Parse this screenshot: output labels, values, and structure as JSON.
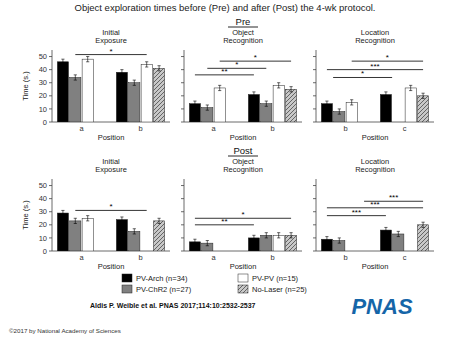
{
  "title": "Object exploration times before (Pre) and after (Post) the 4-wk protocol.",
  "row_labels": [
    "Pre",
    "Post"
  ],
  "citation": "Aldis P. Weible et al. PNAS 2017;114:10:2532-2537",
  "logo": {
    "text": "PNAS",
    "color": "#1565a8"
  },
  "copyright": "©2017 by National Academy of Sciences",
  "chart_data": [
    {
      "type": "bar",
      "title": "Initial\nExposure",
      "categories": [
        "a",
        "b"
      ],
      "series": [
        {
          "name": "PV-Arch (n=34)",
          "color": "#000000",
          "values": [
            46,
            38
          ],
          "errors": [
            2.0,
            2.0
          ]
        },
        {
          "name": "PV-ChR2 (n=27)",
          "color": "#808080",
          "values": [
            34,
            30
          ],
          "errors": [
            2.0,
            2.0
          ]
        },
        {
          "name": "PV-PV (n=15)",
          "color": "#ffffff",
          "values": [
            48,
            44
          ],
          "errors": [
            2.0,
            2.0
          ]
        },
        {
          "name": "No-Laser (n=25)",
          "color": "#c8c8c8",
          "values": [
            null,
            41
          ],
          "errors": [
            null,
            2.0
          ]
        }
      ],
      "xlabel": "Position",
      "ylabel": "Time (s.)",
      "ylim": [
        0,
        55
      ],
      "yticks": [
        0,
        10,
        20,
        30,
        40,
        50
      ],
      "legend": "bottom",
      "annotations": [
        {
          "text": "*",
          "y": 51.5,
          "from": [
            0,
            1
          ],
          "to": [
            1,
            2
          ]
        }
      ]
    },
    {
      "type": "bar",
      "title": "Object\nRecognition",
      "categories": [
        "a",
        "b"
      ],
      "series": [
        {
          "name": "PV-Arch (n=34)",
          "color": "#000000",
          "values": [
            14,
            21
          ],
          "errors": [
            2.0,
            2.0
          ]
        },
        {
          "name": "PV-ChR2 (n=27)",
          "color": "#808080",
          "values": [
            11,
            14
          ],
          "errors": [
            2.0,
            2.0
          ]
        },
        {
          "name": "PV-PV (n=15)",
          "color": "#ffffff",
          "values": [
            26,
            28
          ],
          "errors": [
            2.0,
            2.0
          ]
        },
        {
          "name": "No-Laser (n=25)",
          "color": "#c8c8c8",
          "values": [
            null,
            25
          ],
          "errors": [
            null,
            2.0
          ]
        }
      ],
      "xlabel": "Position",
      "ylim": [
        0,
        55
      ],
      "yticks": [
        0,
        10,
        20,
        30,
        40,
        50
      ],
      "tick_labels": "x",
      "annotations": [
        {
          "text": "**",
          "y": 36,
          "from": [
            0,
            0
          ],
          "to": [
            1,
            0
          ]
        },
        {
          "text": "*",
          "y": 41,
          "from": [
            0,
            1
          ],
          "to": [
            1,
            1
          ]
        },
        {
          "text": "*",
          "y": 46.5,
          "from": [
            0,
            2
          ],
          "to": [
            1,
            3
          ]
        }
      ]
    },
    {
      "type": "bar",
      "title": "Location\nRecognition",
      "categories": [
        "b",
        "c"
      ],
      "series": [
        {
          "name": "PV-Arch (n=34)",
          "color": "#000000",
          "values": [
            14,
            21
          ],
          "errors": [
            2.0,
            2.0
          ]
        },
        {
          "name": "PV-ChR2 (n=27)",
          "color": "#808080",
          "values": [
            8,
            null
          ],
          "errors": [
            2.0,
            null
          ]
        },
        {
          "name": "PV-PV (n=15)",
          "color": "#ffffff",
          "values": [
            15,
            26
          ],
          "errors": [
            2.0,
            2.0
          ]
        },
        {
          "name": "No-Laser (n=25)",
          "color": "#c8c8c8",
          "values": [
            null,
            20
          ],
          "errors": [
            null,
            2.0
          ]
        }
      ],
      "xlabel": "Position",
      "ylim": [
        0,
        55
      ],
      "yticks": [
        0,
        10,
        20,
        30,
        40,
        50
      ],
      "tick_labels": "x",
      "annotations": [
        {
          "text": "*",
          "y": 34,
          "from": [
            0,
            0.5
          ],
          "to": [
            1,
            0.5
          ]
        },
        {
          "text": "***",
          "y": 40,
          "from": [
            0,
            0
          ],
          "to": [
            1,
            3
          ]
        },
        {
          "text": "*",
          "y": 46.5,
          "from": [
            0,
            2
          ],
          "to": [
            1,
            3
          ]
        }
      ]
    },
    {
      "type": "bar",
      "title": "Initial\nExposure",
      "categories": [
        "a",
        "b"
      ],
      "series": [
        {
          "name": "PV-Arch (n=34)",
          "color": "#000000",
          "values": [
            29,
            24
          ],
          "errors": [
            2.0,
            2.0
          ]
        },
        {
          "name": "PV-ChR2 (n=27)",
          "color": "#808080",
          "values": [
            23,
            15
          ],
          "errors": [
            2.0,
            2.0
          ]
        },
        {
          "name": "PV-PV (n=15)",
          "color": "#ffffff",
          "values": [
            25,
            null
          ],
          "errors": [
            2.0,
            null
          ]
        },
        {
          "name": "No-Laser (n=25)",
          "color": "#c8c8c8",
          "values": [
            null,
            23
          ],
          "errors": [
            null,
            2.0
          ]
        }
      ],
      "xlabel": "Position",
      "ylabel": "Time (s.)",
      "ylim": [
        0,
        55
      ],
      "yticks": [
        0,
        10,
        20,
        30,
        40,
        50
      ],
      "annotations": [
        {
          "text": "*",
          "y": 31,
          "from": [
            0,
            1
          ],
          "to": [
            1,
            2
          ]
        }
      ]
    },
    {
      "type": "bar",
      "title": "Object\nRecognition",
      "categories": [
        "a",
        "b"
      ],
      "series": [
        {
          "name": "PV-Arch (n=34)",
          "color": "#000000",
          "values": [
            7,
            10
          ],
          "errors": [
            2.0,
            2.0
          ]
        },
        {
          "name": "PV-ChR2 (n=27)",
          "color": "#808080",
          "values": [
            6,
            12
          ],
          "errors": [
            2.0,
            2.0
          ]
        },
        {
          "name": "PV-PV (n=15)",
          "color": "#ffffff",
          "values": [
            null,
            12
          ],
          "errors": [
            null,
            2.0
          ]
        },
        {
          "name": "No-Laser (n=25)",
          "color": "#c8c8c8",
          "values": [
            null,
            12
          ],
          "errors": [
            null,
            2.0
          ]
        }
      ],
      "xlabel": "Position",
      "ylim": [
        0,
        55
      ],
      "yticks": [
        0,
        10,
        20,
        30,
        40,
        50
      ],
      "tick_labels": "x",
      "annotations": [
        {
          "text": "**",
          "y": 20,
          "from": [
            0,
            0
          ],
          "to": [
            1,
            0
          ]
        },
        {
          "text": "*",
          "y": 25,
          "from": [
            0,
            0
          ],
          "to": [
            1,
            3
          ]
        }
      ]
    },
    {
      "type": "bar",
      "title": "Location\nRecognition",
      "categories": [
        "b",
        "c"
      ],
      "series": [
        {
          "name": "PV-Arch (n=34)",
          "color": "#000000",
          "values": [
            9,
            16
          ],
          "errors": [
            2.0,
            2.0
          ]
        },
        {
          "name": "PV-ChR2 (n=27)",
          "color": "#808080",
          "values": [
            8,
            13
          ],
          "errors": [
            2.0,
            2.0
          ]
        },
        {
          "name": "PV-PV (n=15)",
          "color": "#ffffff",
          "values": [
            null,
            null
          ],
          "errors": [
            null,
            null
          ]
        },
        {
          "name": "No-Laser (n=25)",
          "color": "#c8c8c8",
          "values": [
            null,
            20
          ],
          "errors": [
            null,
            2.0
          ]
        }
      ],
      "xlabel": "Position",
      "ylim": [
        0,
        55
      ],
      "yticks": [
        0,
        10,
        20,
        30,
        40,
        50
      ],
      "tick_labels": "x",
      "annotations": [
        {
          "text": "***",
          "y": 27,
          "from": [
            0,
            0
          ],
          "to": [
            1,
            0
          ]
        },
        {
          "text": "***",
          "y": 33,
          "from": [
            0,
            0
          ],
          "to": [
            1,
            3
          ]
        },
        {
          "text": "***",
          "y": 38,
          "from": [
            0,
            3
          ],
          "to": [
            1,
            3
          ]
        }
      ]
    }
  ]
}
